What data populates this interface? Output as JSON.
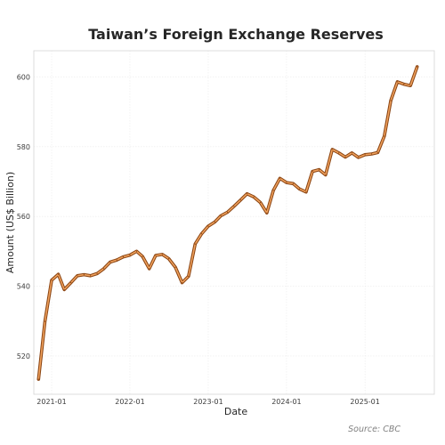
{
  "chart_data": {
    "type": "line",
    "title": "Taiwan’s Foreign Exchange Reserves",
    "xlabel": "Date",
    "ylabel": "Amount (US$ Billion)",
    "source": "Source: CBC",
    "x_ticks": [
      {
        "value": "2021-01-01",
        "label": "2021-01"
      },
      {
        "value": "2022-01-01",
        "label": "2022-01"
      },
      {
        "value": "2023-01-01",
        "label": "2023-01"
      },
      {
        "value": "2024-01-01",
        "label": "2024-01"
      },
      {
        "value": "2025-01-01",
        "label": "2025-01"
      }
    ],
    "y_ticks": [
      520,
      540,
      560,
      580,
      600
    ],
    "xlim": [
      "2020-10-10",
      "2025-11-20"
    ],
    "ylim": [
      509,
      607.5
    ],
    "grid": true,
    "colors": {
      "line": "#8b4513",
      "glow": "#f2a35e",
      "grid": "#ebebeb"
    },
    "series": [
      {
        "x": [
          "2020-11-01",
          "2020-12-01",
          "2021-01-01",
          "2021-02-01",
          "2021-03-01",
          "2021-04-01",
          "2021-05-01",
          "2021-06-01",
          "2021-07-01",
          "2021-08-01",
          "2021-09-01",
          "2021-10-01",
          "2021-11-01",
          "2021-12-01",
          "2022-01-01",
          "2022-02-01",
          "2022-03-01",
          "2022-04-01",
          "2022-05-01",
          "2022-06-01",
          "2022-07-01",
          "2022-08-01",
          "2022-09-01",
          "2022-10-01",
          "2022-11-01",
          "2022-12-01",
          "2023-01-01",
          "2023-02-01",
          "2023-03-01",
          "2023-04-01",
          "2023-05-01",
          "2023-06-01",
          "2023-07-01",
          "2023-08-01",
          "2023-09-01",
          "2023-10-01",
          "2023-11-01",
          "2023-12-01",
          "2024-01-01",
          "2024-02-01",
          "2024-03-01",
          "2024-04-01",
          "2024-05-01",
          "2024-06-01",
          "2024-07-01",
          "2024-08-01",
          "2024-09-01",
          "2024-10-01",
          "2024-11-01",
          "2024-12-01",
          "2025-01-01",
          "2025-02-01",
          "2025-03-01",
          "2025-04-01",
          "2025-05-01",
          "2025-06-01",
          "2025-07-01",
          "2025-08-01",
          "2025-09-01"
        ],
        "values": [
          513.3,
          529.9,
          541.7,
          543.4,
          539.0,
          541.0,
          543.0,
          543.3,
          543.0,
          543.6,
          545.0,
          546.9,
          547.5,
          548.4,
          548.9,
          550.0,
          548.5,
          545.0,
          548.8,
          549.1,
          547.9,
          545.4,
          541.0,
          542.8,
          552.1,
          555.0,
          557.2,
          558.4,
          560.2,
          561.2,
          562.9,
          564.7,
          566.5,
          565.6,
          564.0,
          561.0,
          567.5,
          570.9,
          569.7,
          569.4,
          567.9,
          567.0,
          572.9,
          573.4,
          571.9,
          579.2,
          578.2,
          577.0,
          578.2,
          576.9,
          577.7,
          577.9,
          578.3,
          583.0,
          593.2,
          598.6,
          597.9,
          597.5,
          602.9
        ]
      }
    ]
  }
}
